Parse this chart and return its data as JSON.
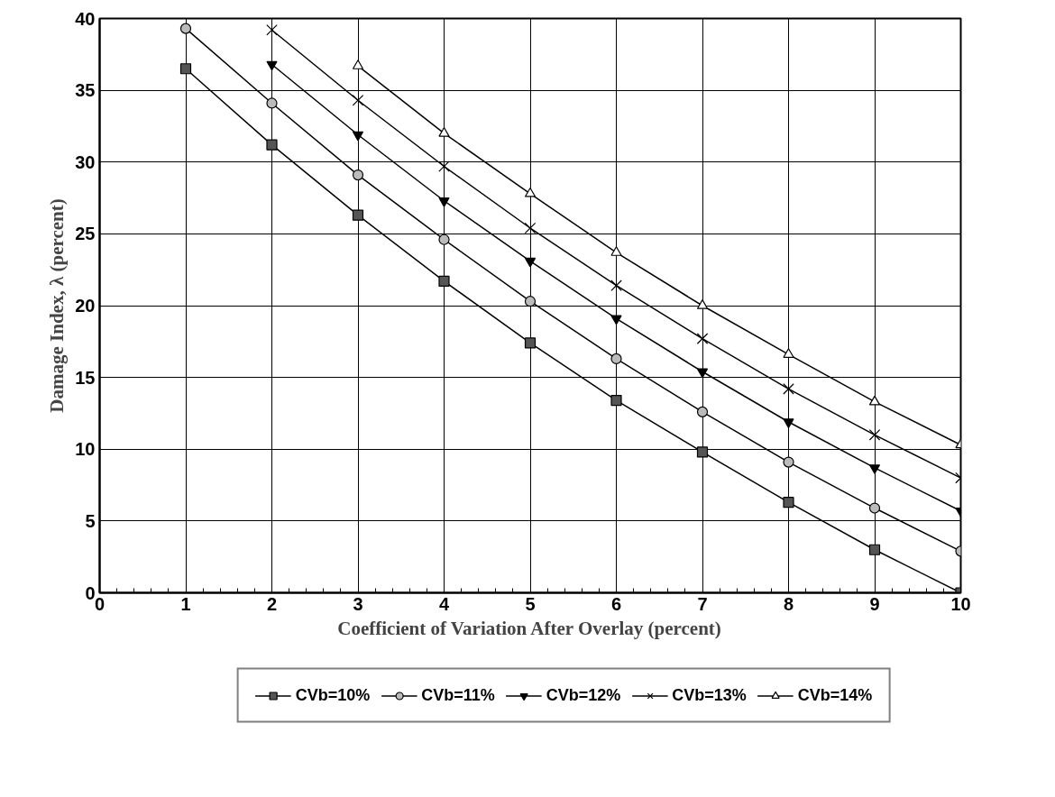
{
  "chart_data": {
    "type": "line",
    "xlabel": "Coefficient of Variation After Overlay (percent)",
    "ylabel": "Damage Index, λ (percent)",
    "x": [
      1,
      2,
      3,
      4,
      5,
      6,
      7,
      8,
      9,
      10
    ],
    "series": [
      {
        "name": "CVb=10%",
        "color": "#000000",
        "marker": "square",
        "values": [
          36.5,
          31.2,
          26.3,
          21.7,
          17.4,
          13.4,
          9.8,
          6.3,
          3.0,
          0.0
        ]
      },
      {
        "name": "CVb=11%",
        "color": "#000000",
        "marker": "circle",
        "values": [
          39.3,
          34.1,
          29.1,
          24.6,
          20.3,
          16.3,
          12.6,
          9.1,
          5.9,
          2.9
        ]
      },
      {
        "name": "CVb=12%",
        "color": "#000000",
        "marker": "triangle_down",
        "values": [
          null,
          36.8,
          31.9,
          27.3,
          23.1,
          19.1,
          15.4,
          11.9,
          8.7,
          5.7
        ]
      },
      {
        "name": "CVb=13%",
        "color": "#000000",
        "marker": "cross",
        "values": [
          null,
          39.2,
          34.3,
          29.7,
          25.4,
          21.4,
          17.7,
          14.2,
          11.0,
          8.0
        ]
      },
      {
        "name": "CVb=14%",
        "color": "#000000",
        "marker": "triangle",
        "values": [
          null,
          null,
          36.7,
          32.0,
          27.8,
          23.7,
          20.0,
          16.6,
          13.3,
          10.3
        ]
      }
    ],
    "xlim": [
      0,
      10
    ],
    "ylim": [
      0,
      40
    ],
    "xticks": [
      0,
      1,
      2,
      3,
      4,
      5,
      6,
      7,
      8,
      9,
      10
    ],
    "yticks": [
      0,
      5,
      10,
      15,
      20,
      25,
      30,
      35,
      40
    ],
    "grid": true,
    "legend": "bottom",
    "line_style": "solid"
  }
}
